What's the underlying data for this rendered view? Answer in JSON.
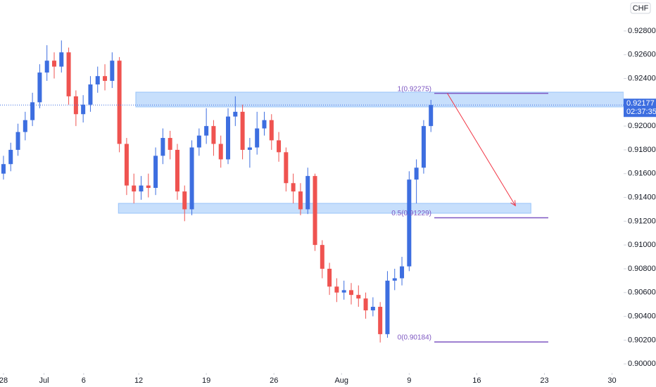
{
  "chart_data": {
    "type": "candlestick",
    "currency": "CHF",
    "up_color": "#3d6ee0",
    "down_color": "#ef5350",
    "xlim": [
      -0.36,
      64.2
    ],
    "ylim": [
      0.89924,
      0.9306
    ],
    "xticks": [
      {
        "value": 0,
        "label": "28"
      },
      {
        "value": 4.2,
        "label": "Jul"
      },
      {
        "value": 8.3,
        "label": "6"
      },
      {
        "value": 14,
        "label": "12"
      },
      {
        "value": 21,
        "label": "19"
      },
      {
        "value": 28,
        "label": "26"
      },
      {
        "value": 35,
        "label": "Aug"
      },
      {
        "value": 42,
        "label": "9"
      },
      {
        "value": 49,
        "label": "16"
      },
      {
        "value": 56,
        "label": "23"
      },
      {
        "value": 63,
        "label": "30"
      }
    ],
    "yticks": [
      {
        "value": 0.9,
        "label": "0.90000"
      },
      {
        "value": 0.902,
        "label": "0.90200"
      },
      {
        "value": 0.904,
        "label": "0.90400"
      },
      {
        "value": 0.906,
        "label": "0.90600"
      },
      {
        "value": 0.908,
        "label": "0.90800"
      },
      {
        "value": 0.91,
        "label": "0.91000"
      },
      {
        "value": 0.912,
        "label": "0.91200"
      },
      {
        "value": 0.914,
        "label": "0.91400"
      },
      {
        "value": 0.916,
        "label": "0.91600"
      },
      {
        "value": 0.918,
        "label": "0.91800"
      },
      {
        "value": 0.92,
        "label": "0.92000"
      },
      {
        "value": 0.924,
        "label": "0.92400"
      },
      {
        "value": 0.926,
        "label": "0.92600"
      },
      {
        "value": 0.928,
        "label": "0.92800"
      }
    ],
    "x": [
      0,
      0.75,
      1.5,
      2.25,
      3,
      3.75,
      4.5,
      5.25,
      6,
      6.75,
      7.5,
      8.25,
      9,
      9.75,
      10.5,
      11.25,
      12,
      12.75,
      13.5,
      14.25,
      15,
      15.75,
      16.5,
      17.25,
      18,
      18.75,
      19.5,
      20.25,
      21,
      21.75,
      22.5,
      23.25,
      24,
      24.75,
      25.5,
      26.25,
      27,
      27.75,
      28.5,
      29.25,
      30,
      30.75,
      31.5,
      32.25,
      33,
      33.75,
      34.5,
      35.25,
      36,
      36.75,
      37.5,
      38.25,
      39,
      39.75,
      40.5,
      41.25,
      42,
      42.75,
      43.5,
      44.25
    ],
    "open": [
      0.916,
      0.9168,
      0.918,
      0.9195,
      0.9205,
      0.922,
      0.9245,
      0.9255,
      0.925,
      0.9262,
      0.9225,
      0.921,
      0.9218,
      0.9235,
      0.9242,
      0.9238,
      0.9255,
      0.9185,
      0.915,
      0.9145,
      0.915,
      0.9148,
      0.9175,
      0.919,
      0.918,
      0.9145,
      0.913,
      0.9182,
      0.9192,
      0.92,
      0.9185,
      0.9172,
      0.9208,
      0.9212,
      0.918,
      0.9182,
      0.9198,
      0.9205,
      0.9188,
      0.9178,
      0.9152,
      0.9145,
      0.913,
      0.9158,
      0.91,
      0.908,
      0.9065,
      0.906,
      0.9062,
      0.9058,
      0.9055,
      0.9045,
      0.9048,
      0.9025,
      0.907,
      0.9072,
      0.9082,
      0.9155,
      0.9165,
      0.92
    ],
    "high": [
      0.9175,
      0.9186,
      0.9202,
      0.9212,
      0.9228,
      0.9252,
      0.9268,
      0.9262,
      0.9272,
      0.9266,
      0.923,
      0.9226,
      0.9242,
      0.925,
      0.9252,
      0.9262,
      0.9258,
      0.919,
      0.916,
      0.9158,
      0.916,
      0.9182,
      0.9198,
      0.9196,
      0.9185,
      0.915,
      0.9188,
      0.9198,
      0.9215,
      0.9205,
      0.9192,
      0.9215,
      0.9225,
      0.9218,
      0.919,
      0.9212,
      0.9212,
      0.921,
      0.9195,
      0.9182,
      0.916,
      0.9152,
      0.9165,
      0.916,
      0.9104,
      0.9085,
      0.9072,
      0.907,
      0.9068,
      0.9066,
      0.906,
      0.9056,
      0.9052,
      0.9078,
      0.908,
      0.909,
      0.9162,
      0.9172,
      0.9205,
      0.9222
    ],
    "low": [
      0.9155,
      0.9162,
      0.9175,
      0.9188,
      0.92,
      0.9215,
      0.9238,
      0.924,
      0.9245,
      0.9218,
      0.92,
      0.9203,
      0.9212,
      0.9228,
      0.923,
      0.9232,
      0.9178,
      0.9142,
      0.9135,
      0.9138,
      0.914,
      0.9142,
      0.9168,
      0.9172,
      0.9138,
      0.912,
      0.9125,
      0.9175,
      0.9185,
      0.9175,
      0.9165,
      0.9168,
      0.92,
      0.9172,
      0.9165,
      0.9176,
      0.9192,
      0.918,
      0.917,
      0.9145,
      0.9135,
      0.9125,
      0.9126,
      0.9095,
      0.9072,
      0.9058,
      0.9052,
      0.9054,
      0.905,
      0.9048,
      0.9038,
      0.904,
      0.9018,
      0.9022,
      0.9062,
      0.9066,
      0.9078,
      0.9135,
      0.916,
      0.9195
    ],
    "close": [
      0.9168,
      0.918,
      0.9195,
      0.9205,
      0.922,
      0.9245,
      0.9255,
      0.925,
      0.9262,
      0.9225,
      0.921,
      0.9218,
      0.9235,
      0.9242,
      0.9238,
      0.9255,
      0.9185,
      0.915,
      0.9145,
      0.915,
      0.9148,
      0.9175,
      0.919,
      0.918,
      0.9145,
      0.913,
      0.9182,
      0.9192,
      0.92,
      0.9185,
      0.9172,
      0.9208,
      0.9212,
      0.918,
      0.9182,
      0.9198,
      0.9205,
      0.9188,
      0.9178,
      0.9152,
      0.9145,
      0.913,
      0.9158,
      0.91,
      0.908,
      0.9065,
      0.906,
      0.9062,
      0.9058,
      0.9055,
      0.9045,
      0.9048,
      0.9025,
      0.907,
      0.9072,
      0.9082,
      0.9155,
      0.9165,
      0.92,
      0.92177
    ],
    "zones": [
      {
        "x": [
          13.7,
          64.2
        ],
        "y": [
          0.92161,
          0.92285
        ],
        "color": "#90bff9"
      },
      {
        "x": [
          11.9,
          54.6
        ],
        "y": [
          0.91267,
          0.9135
        ],
        "color": "#90bff9"
      }
    ],
    "fib_levels": [
      {
        "value": 0.92275,
        "label": "1(0.92275)"
      },
      {
        "value": 0.91229,
        "label": "0.5(0.91229)"
      },
      {
        "value": 0.90184,
        "label": "0(0.90184)"
      }
    ],
    "fib_x": [
      44.6,
      56.4
    ],
    "fib_color": "#7e57c2",
    "arrow": {
      "from": [
        45.95,
        0.92275
      ],
      "to": [
        53.0,
        0.9133
      ],
      "color": "#f23645"
    },
    "last_price": {
      "value": 0.92177,
      "label": "0.92177"
    },
    "countdown": "02:37:35"
  }
}
